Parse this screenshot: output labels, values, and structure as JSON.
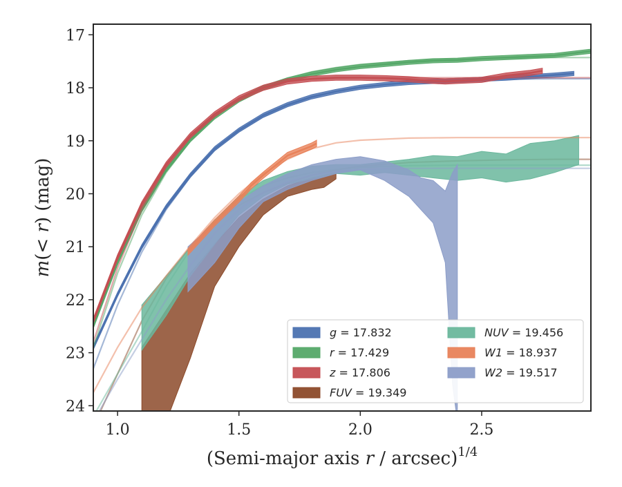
{
  "chart_data": {
    "type": "line",
    "xlabel": "(Semi-major axis r / arcsec)^1/4",
    "xlabel_parts": {
      "prefix": "(Semi-major axis ",
      "var": "r",
      "suffix": " / arcsec)",
      "sup": "1/4"
    },
    "ylabel": "m(< r) (mag)",
    "ylabel_parts": {
      "m": "m",
      "open": "(",
      "lt": "< ",
      "var": "r",
      "close": ")",
      "unit": " (mag)"
    },
    "xlim": [
      0.9,
      2.95
    ],
    "ylim": [
      24.1,
      16.8
    ],
    "y_inverted": true,
    "x_ticks": [
      1.0,
      1.5,
      2.0,
      2.5
    ],
    "x_tick_labels": [
      "1.0",
      "1.5",
      "2.0",
      "2.5"
    ],
    "y_ticks": [
      17,
      18,
      19,
      20,
      21,
      22,
      23,
      24
    ],
    "y_tick_labels": [
      "17",
      "18",
      "19",
      "20",
      "21",
      "22",
      "23",
      "24"
    ],
    "grid": false,
    "legend_position": "lower-right",
    "series": [
      {
        "id": "g",
        "name": "g = 17.832",
        "label_var": "g",
        "label_val": "17.832",
        "color": "#4c72b0",
        "x": [
          0.9,
          1.0,
          1.1,
          1.2,
          1.3,
          1.4,
          1.5,
          1.6,
          1.7,
          1.8,
          1.9,
          2.0,
          2.1,
          2.2,
          2.3,
          2.4,
          2.5,
          2.6,
          2.7,
          2.8,
          2.88
        ],
        "y": [
          22.9,
          21.9,
          21.0,
          20.25,
          19.65,
          19.15,
          18.8,
          18.52,
          18.32,
          18.17,
          18.07,
          17.99,
          17.94,
          17.9,
          17.88,
          17.86,
          17.84,
          17.82,
          17.79,
          17.76,
          17.73
        ],
        "band": 0.04,
        "model": {
          "x": [
            0.9,
            1.0,
            1.1,
            1.2,
            1.3,
            1.4,
            1.5,
            1.6,
            1.7,
            1.8,
            1.9,
            2.0,
            2.2,
            2.4,
            2.6,
            2.8,
            2.95
          ],
          "y": [
            23.3,
            22.1,
            21.1,
            20.3,
            19.68,
            19.18,
            18.82,
            18.54,
            18.33,
            18.18,
            18.07,
            17.99,
            17.9,
            17.86,
            17.84,
            17.83,
            17.83
          ]
        }
      },
      {
        "id": "r",
        "name": "r = 17.429",
        "label_var": "r",
        "label_val": "17.429",
        "color": "#55a868",
        "x": [
          0.9,
          1.0,
          1.1,
          1.2,
          1.3,
          1.4,
          1.5,
          1.6,
          1.7,
          1.8,
          1.9,
          2.0,
          2.1,
          2.2,
          2.3,
          2.4,
          2.5,
          2.6,
          2.7,
          2.8,
          2.95
        ],
        "y": [
          22.5,
          21.3,
          20.3,
          19.55,
          18.98,
          18.55,
          18.23,
          18.0,
          17.85,
          17.74,
          17.66,
          17.6,
          17.56,
          17.52,
          17.49,
          17.48,
          17.45,
          17.43,
          17.41,
          17.39,
          17.31
        ],
        "band": 0.04,
        "model": {
          "x": [
            0.9,
            1.0,
            1.1,
            1.2,
            1.3,
            1.4,
            1.5,
            1.6,
            1.7,
            1.8,
            1.9,
            2.0,
            2.2,
            2.4,
            2.6,
            2.8,
            2.95
          ],
          "y": [
            22.9,
            21.5,
            20.4,
            19.6,
            19.0,
            18.55,
            18.22,
            17.98,
            17.82,
            17.7,
            17.62,
            17.56,
            17.49,
            17.46,
            17.44,
            17.43,
            17.43
          ]
        }
      },
      {
        "id": "z",
        "name": "z = 17.806",
        "label_var": "z",
        "label_val": "17.806",
        "color": "#c44e52",
        "x": [
          0.9,
          1.0,
          1.1,
          1.2,
          1.3,
          1.4,
          1.5,
          1.6,
          1.7,
          1.8,
          1.9,
          2.0,
          2.1,
          2.2,
          2.3,
          2.35,
          2.4,
          2.5,
          2.6,
          2.7,
          2.75
        ],
        "y": [
          22.4,
          21.2,
          20.2,
          19.45,
          18.9,
          18.5,
          18.2,
          18.0,
          17.88,
          17.83,
          17.81,
          17.81,
          17.82,
          17.84,
          17.87,
          17.88,
          17.87,
          17.85,
          17.77,
          17.72,
          17.68
        ],
        "band": 0.05,
        "model": {
          "x": [
            0.9,
            1.0,
            1.1,
            1.2,
            1.3,
            1.4,
            1.5,
            1.6,
            1.7,
            1.8,
            1.9,
            2.0,
            2.2,
            2.4,
            2.6,
            2.8,
            2.95
          ],
          "y": [
            22.8,
            21.4,
            20.3,
            19.5,
            18.92,
            18.5,
            18.2,
            18.0,
            17.88,
            17.84,
            17.82,
            17.81,
            17.81,
            17.81,
            17.81,
            17.81,
            17.81
          ]
        }
      },
      {
        "id": "fuv",
        "name": "FUV = 19.349",
        "label_var": "FUV",
        "label_val": "19.349",
        "color": "#8c4a2a",
        "x": [
          1.1,
          1.2,
          1.3,
          1.4,
          1.5,
          1.6,
          1.7,
          1.8,
          1.85,
          1.9
        ],
        "y_low": [
          22.9,
          22.2,
          21.5,
          20.95,
          20.45,
          20.1,
          19.85,
          19.7,
          19.65,
          19.6
        ],
        "y_high": [
          24.3,
          24.3,
          23.1,
          21.75,
          21.0,
          20.4,
          20.05,
          19.92,
          19.88,
          19.72
        ],
        "model": {
          "x": [
            0.9,
            1.0,
            1.1,
            1.2,
            1.3,
            1.4,
            1.5,
            1.6,
            1.7,
            1.8,
            1.9,
            2.0,
            2.2,
            2.4,
            2.6,
            2.8,
            2.95
          ],
          "y": [
            24.4,
            23.4,
            22.4,
            21.6,
            21.0,
            20.55,
            20.22,
            19.98,
            19.8,
            19.65,
            19.55,
            19.48,
            19.41,
            19.38,
            19.36,
            19.35,
            19.35
          ]
        }
      },
      {
        "id": "nuv",
        "name": "NUV = 19.456",
        "label_var": "NUV",
        "label_val": "19.456",
        "color": "#6ab79c",
        "x": [
          1.1,
          1.2,
          1.3,
          1.4,
          1.5,
          1.6,
          1.7,
          1.8,
          1.9,
          2.0,
          2.1,
          2.2,
          2.3,
          2.4,
          2.5,
          2.6,
          2.7,
          2.8,
          2.9
        ],
        "y_low": [
          22.1,
          21.55,
          21.0,
          20.5,
          20.05,
          19.75,
          19.58,
          19.48,
          19.45,
          19.45,
          19.4,
          19.35,
          19.28,
          19.3,
          19.2,
          19.25,
          19.05,
          19.0,
          18.9
        ],
        "y_high": [
          22.95,
          22.3,
          21.55,
          20.95,
          20.4,
          20.05,
          19.82,
          19.72,
          19.62,
          19.65,
          19.6,
          19.65,
          19.7,
          19.75,
          19.7,
          19.78,
          19.72,
          19.6,
          19.45
        ],
        "model": {
          "x": [
            0.9,
            1.0,
            1.1,
            1.2,
            1.3,
            1.4,
            1.5,
            1.6,
            1.7,
            1.8,
            1.9,
            2.0,
            2.2,
            2.4,
            2.6,
            2.8,
            2.95
          ],
          "y": [
            24.2,
            23.4,
            22.6,
            21.75,
            21.05,
            20.5,
            20.1,
            19.85,
            19.7,
            19.6,
            19.54,
            19.5,
            19.47,
            19.46,
            19.46,
            19.46,
            19.46
          ]
        }
      },
      {
        "id": "w1",
        "name": "W1 = 18.937",
        "label_var": "W1",
        "label_val": "18.937",
        "color": "#e8825a",
        "x": [
          1.29,
          1.4,
          1.5,
          1.55,
          1.6,
          1.7,
          1.8,
          1.82
        ],
        "y": [
          21.1,
          20.55,
          20.1,
          19.85,
          19.65,
          19.28,
          19.1,
          19.05
        ],
        "band": 0.06,
        "model": {
          "x": [
            0.9,
            1.0,
            1.1,
            1.2,
            1.3,
            1.4,
            1.5,
            1.6,
            1.7,
            1.8,
            1.9,
            2.0,
            2.2,
            2.4,
            2.6,
            2.8,
            2.95
          ],
          "y": [
            23.75,
            22.9,
            22.15,
            21.55,
            20.98,
            20.45,
            20.0,
            19.62,
            19.35,
            19.15,
            19.04,
            18.99,
            18.95,
            18.94,
            18.94,
            18.94,
            18.94
          ]
        }
      },
      {
        "id": "w2",
        "name": "W2 = 19.517",
        "label_var": "W2",
        "label_val": "19.517",
        "color": "#8c9dc8",
        "x": [
          1.29,
          1.4,
          1.5,
          1.6,
          1.7,
          1.8,
          1.9,
          2.0,
          2.1,
          2.2,
          2.25,
          2.3,
          2.35,
          2.38,
          2.4
        ],
        "y_low": [
          21.0,
          20.55,
          20.15,
          19.85,
          19.62,
          19.45,
          19.35,
          19.3,
          19.38,
          19.55,
          19.7,
          19.75,
          19.95,
          19.6,
          19.45
        ],
        "y_high": [
          21.85,
          21.3,
          20.65,
          20.15,
          19.92,
          19.75,
          19.62,
          19.55,
          19.75,
          20.05,
          20.3,
          20.55,
          21.3,
          23.6,
          24.3
        ],
        "model": {
          "x": [
            0.9,
            1.0,
            1.1,
            1.2,
            1.3,
            1.4,
            1.5,
            1.6,
            1.7,
            1.8,
            1.9,
            2.0,
            2.2,
            2.4,
            2.6,
            2.8,
            2.95
          ],
          "y": [
            24.3,
            23.5,
            22.75,
            22.0,
            21.35,
            20.75,
            20.3,
            19.98,
            19.78,
            19.65,
            19.58,
            19.54,
            19.52,
            19.52,
            19.52,
            19.52,
            19.52
          ]
        }
      }
    ]
  }
}
